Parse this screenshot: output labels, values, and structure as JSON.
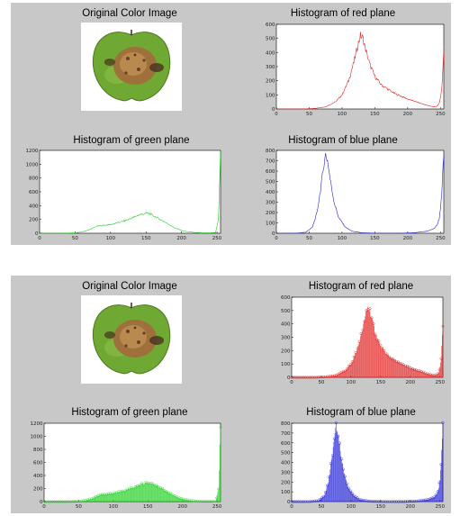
{
  "figures": [
    {
      "image_title": "Original Color Image",
      "image_subject": "green apple with brown rotten patch",
      "histograms": [
        {
          "title": "Histogram of red plane",
          "channel": "red"
        },
        {
          "title": "Histogram of green plane",
          "channel": "green"
        },
        {
          "title": "Histogram of blue plane",
          "channel": "blue"
        }
      ]
    },
    {
      "image_title": "Original Color Image",
      "image_subject": "green apple with brown rotten patch",
      "histograms": [
        {
          "title": "Histogram of red plane",
          "channel": "red"
        },
        {
          "title": "Histogram of green plane",
          "channel": "green"
        },
        {
          "title": "Histogram of blue plane",
          "channel": "blue"
        }
      ]
    }
  ],
  "colors": {
    "red": "#e02020",
    "green": "#22d022",
    "blue": "#2222d0",
    "background": "#c8c8c8"
  },
  "chart_data": [
    {
      "type": "line",
      "title": "Histogram of red plane",
      "color": "#e02020",
      "xlim": [
        0,
        255
      ],
      "ylim": [
        0,
        600
      ],
      "xticks": [
        0,
        50,
        100,
        150,
        200,
        250
      ],
      "yticks": [
        0,
        100,
        200,
        300,
        400,
        500,
        600
      ],
      "x": [
        0,
        40,
        60,
        75,
        90,
        100,
        110,
        118,
        124,
        128,
        132,
        136,
        142,
        150,
        160,
        170,
        180,
        190,
        200,
        210,
        220,
        230,
        240,
        245,
        248,
        250,
        252,
        253,
        254,
        255
      ],
      "y": [
        0,
        0,
        5,
        15,
        50,
        100,
        200,
        330,
        450,
        520,
        500,
        420,
        320,
        230,
        170,
        140,
        110,
        90,
        70,
        55,
        40,
        25,
        15,
        20,
        40,
        80,
        150,
        230,
        310,
        390
      ]
    },
    {
      "type": "line",
      "title": "Histogram of green plane",
      "color": "#22d022",
      "xlim": [
        0,
        255
      ],
      "ylim": [
        0,
        1200
      ],
      "xticks": [
        0,
        50,
        100,
        150,
        200,
        250
      ],
      "yticks": [
        0,
        200,
        400,
        600,
        800,
        1000,
        1200
      ],
      "x": [
        0,
        30,
        50,
        60,
        70,
        80,
        90,
        100,
        110,
        120,
        130,
        140,
        150,
        155,
        160,
        170,
        180,
        190,
        200,
        210,
        220,
        230,
        240,
        248,
        252,
        253,
        254,
        255
      ],
      "y": [
        0,
        0,
        5,
        20,
        50,
        100,
        115,
        125,
        150,
        180,
        220,
        265,
        290,
        285,
        255,
        200,
        140,
        80,
        40,
        20,
        10,
        5,
        5,
        10,
        200,
        500,
        850,
        1150
      ]
    },
    {
      "type": "line",
      "title": "Histogram of blue plane",
      "color": "#2222d0",
      "xlim": [
        0,
        255
      ],
      "ylim": [
        0,
        800
      ],
      "xticks": [
        0,
        50,
        100,
        150,
        200,
        250
      ],
      "yticks": [
        0,
        100,
        200,
        300,
        400,
        500,
        600,
        700,
        800
      ],
      "x": [
        0,
        30,
        45,
        55,
        62,
        68,
        72,
        75,
        78,
        82,
        88,
        95,
        105,
        115,
        130,
        150,
        170,
        190,
        210,
        230,
        240,
        245,
        248,
        250,
        252,
        253,
        254,
        255
      ],
      "y": [
        0,
        0,
        10,
        60,
        200,
        450,
        650,
        760,
        700,
        520,
        300,
        150,
        60,
        20,
        5,
        0,
        0,
        0,
        5,
        20,
        45,
        80,
        140,
        230,
        380,
        520,
        680,
        780
      ]
    },
    {
      "type": "bar",
      "title": "Histogram of red plane",
      "color": "#e02020",
      "xlim": [
        0,
        255
      ],
      "ylim": [
        0,
        600
      ],
      "xticks": [
        0,
        50,
        100,
        150,
        200,
        250
      ],
      "yticks": [
        0,
        100,
        200,
        300,
        400,
        500,
        600
      ],
      "x": [
        0,
        40,
        60,
        75,
        90,
        100,
        110,
        118,
        124,
        128,
        132,
        136,
        142,
        150,
        160,
        170,
        180,
        190,
        200,
        210,
        220,
        230,
        240,
        245,
        248,
        250,
        252,
        253,
        254,
        255
      ],
      "y": [
        0,
        0,
        5,
        15,
        50,
        100,
        200,
        330,
        450,
        520,
        500,
        420,
        320,
        230,
        170,
        140,
        110,
        90,
        70,
        55,
        40,
        25,
        15,
        20,
        40,
        80,
        150,
        230,
        310,
        390
      ]
    },
    {
      "type": "bar",
      "title": "Histogram of green plane",
      "color": "#22d022",
      "xlim": [
        0,
        255
      ],
      "ylim": [
        0,
        1200
      ],
      "xticks": [
        0,
        50,
        100,
        150,
        200,
        250
      ],
      "yticks": [
        0,
        200,
        400,
        600,
        800,
        1000,
        1200
      ],
      "x": [
        0,
        30,
        50,
        60,
        70,
        80,
        90,
        100,
        110,
        120,
        130,
        140,
        150,
        155,
        160,
        170,
        180,
        190,
        200,
        210,
        220,
        230,
        240,
        248,
        252,
        253,
        254,
        255
      ],
      "y": [
        0,
        0,
        5,
        20,
        50,
        100,
        115,
        125,
        150,
        180,
        220,
        265,
        290,
        285,
        255,
        200,
        140,
        80,
        40,
        20,
        10,
        5,
        5,
        10,
        200,
        500,
        850,
        1150
      ]
    },
    {
      "type": "bar",
      "title": "Histogram of blue plane",
      "color": "#2222d0",
      "xlim": [
        0,
        255
      ],
      "ylim": [
        0,
        800
      ],
      "xticks": [
        0,
        50,
        100,
        150,
        200,
        250
      ],
      "yticks": [
        0,
        100,
        200,
        300,
        400,
        500,
        600,
        700,
        800
      ],
      "x": [
        0,
        30,
        45,
        55,
        62,
        68,
        72,
        75,
        78,
        82,
        88,
        95,
        105,
        115,
        130,
        150,
        170,
        190,
        210,
        230,
        240,
        245,
        248,
        250,
        252,
        253,
        254,
        255
      ],
      "y": [
        0,
        0,
        10,
        60,
        200,
        450,
        650,
        760,
        700,
        520,
        300,
        150,
        60,
        20,
        5,
        0,
        0,
        0,
        5,
        20,
        45,
        80,
        140,
        230,
        380,
        520,
        680,
        780
      ]
    }
  ]
}
